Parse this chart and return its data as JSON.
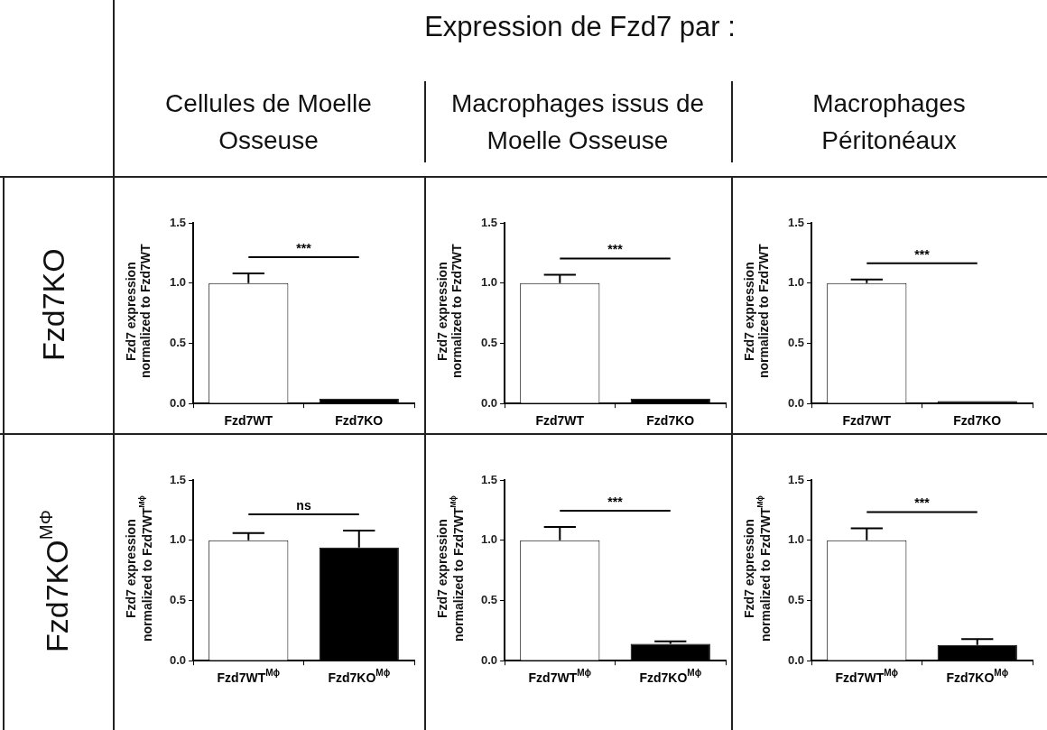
{
  "chart_data": [
    {
      "type": "other",
      "title": "Expression de Fzd7 par :",
      "annotations": [
        "Cellules de Moelle Osseuse",
        "Macrophages issus de Moelle Osseuse",
        "Macrophages Péritonéaux",
        "Fzd7KO",
        "Fzd7KO$^{MΦ}$"
      ]
    },
    {
      "type": "bar",
      "ylabel": "Fzd7 expression\nnormalized to Fzd7WT",
      "categories": [
        "Fzd7WT",
        "Fzd7KO"
      ],
      "values": [
        1.0,
        0.04
      ],
      "colors": [
        "#ffffff",
        "#000000"
      ],
      "errors": [
        [
          1.0,
          1.08
        ],
        null
      ],
      "ylim": [
        0,
        1.5
      ],
      "yticks": [
        {
          "value": 0,
          "label": "0.0"
        },
        {
          "value": 0.5,
          "label": "0.5"
        },
        {
          "value": 1,
          "label": "1.0"
        },
        {
          "value": 1.5,
          "label": "1.5"
        }
      ],
      "annotations": [
        "***"
      ]
    },
    {
      "type": "bar",
      "ylabel": "Fzd7 expression\nnormalized to Fzd7WT",
      "categories": [
        "Fzd7WT",
        "Fzd7KO"
      ],
      "values": [
        1.0,
        0.04
      ],
      "colors": [
        "#ffffff",
        "#000000"
      ],
      "errors": [
        [
          1.0,
          1.07
        ],
        null
      ],
      "ylim": [
        0,
        1.5
      ],
      "yticks": [
        {
          "value": 0,
          "label": "0.0"
        },
        {
          "value": 0.5,
          "label": "0.5"
        },
        {
          "value": 1,
          "label": "1.0"
        },
        {
          "value": 1.5,
          "label": "1.5"
        }
      ],
      "annotations": [
        "***"
      ]
    },
    {
      "type": "bar",
      "ylabel": "Fzd7 expression\nnormalized to Fzd7WT",
      "categories": [
        "Fzd7WT",
        "Fzd7KO"
      ],
      "values": [
        1.0,
        0.02
      ],
      "colors": [
        "#ffffff",
        "#000000"
      ],
      "errors": [
        [
          1.0,
          1.03
        ],
        null
      ],
      "ylim": [
        0,
        1.5
      ],
      "yticks": [
        {
          "value": 0,
          "label": "0.0"
        },
        {
          "value": 0.5,
          "label": "0.5"
        },
        {
          "value": 1,
          "label": "1.0"
        },
        {
          "value": 1.5,
          "label": "1.5"
        }
      ],
      "annotations": [
        "***"
      ]
    },
    {
      "type": "bar",
      "ylabel": "Fzd7 expression\nnormalized to Fzd7WT$^{Mϕ}$",
      "categories": [
        "Fzd7WT$^{Mϕ}$",
        "Fzd7KO$^{Mϕ}$"
      ],
      "values": [
        1.0,
        0.94
      ],
      "colors": [
        "#ffffff",
        "#000000"
      ],
      "errors": [
        [
          1.0,
          1.06
        ],
        [
          0.94,
          1.08
        ]
      ],
      "ylim": [
        0,
        1.5
      ],
      "yticks": [
        {
          "value": 0,
          "label": "0.0"
        },
        {
          "value": 0.5,
          "label": "0.5"
        },
        {
          "value": 1,
          "label": "1.0"
        },
        {
          "value": 1.5,
          "label": "1.5"
        }
      ],
      "annotations": [
        "ns"
      ]
    },
    {
      "type": "bar",
      "ylabel": "Fzd7 expression\nnormalized to Fzd7WT$^{Mϕ}$",
      "categories": [
        "Fzd7WT$^{Mϕ}$",
        "Fzd7KO$^{Mϕ}$"
      ],
      "values": [
        1.0,
        0.14
      ],
      "colors": [
        "#ffffff",
        "#000000"
      ],
      "errors": [
        [
          1.0,
          1.11
        ],
        [
          0.14,
          0.16
        ]
      ],
      "ylim": [
        0,
        1.5
      ],
      "yticks": [
        {
          "value": 0,
          "label": "0.0"
        },
        {
          "value": 0.5,
          "label": "0.5"
        },
        {
          "value": 1,
          "label": "1.0"
        },
        {
          "value": 1.5,
          "label": "1.5"
        }
      ],
      "annotations": [
        "***"
      ]
    },
    {
      "type": "bar",
      "ylabel": "Fzd7 expression\nnormalized to Fzd7WT$^{Mϕ}$",
      "categories": [
        "Fzd7WT$^{Mϕ}$",
        "Fzd7KO$^{Mϕ}$"
      ],
      "values": [
        1.0,
        0.13
      ],
      "colors": [
        "#ffffff",
        "#000000"
      ],
      "errors": [
        [
          1.0,
          1.1
        ],
        [
          0.13,
          0.18
        ]
      ],
      "ylim": [
        0,
        1.5
      ],
      "yticks": [
        {
          "value": 0,
          "label": "0.0"
        },
        {
          "value": 0.5,
          "label": "0.5"
        },
        {
          "value": 1,
          "label": "1.0"
        },
        {
          "value": 1.5,
          "label": "1.5"
        }
      ],
      "annotations": [
        "***"
      ]
    }
  ]
}
